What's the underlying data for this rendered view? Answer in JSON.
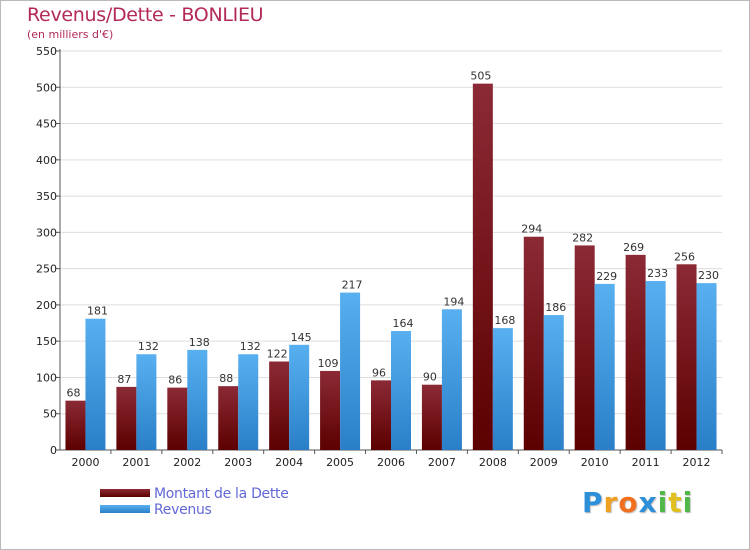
{
  "colors": {
    "title": "#b3295a",
    "dette_top": "#8b2a35",
    "dette_bottom": "#5c0000",
    "revenus_top": "#58b0f0",
    "revenus_bottom": "#2a7fc7",
    "grid": "#dddddd"
  },
  "chart_data": {
    "type": "bar",
    "title": "Revenus/Dette - BONLIEU",
    "subtitle": "(en milliers d'€)",
    "categories": [
      "2000",
      "2001",
      "2002",
      "2003",
      "2004",
      "2005",
      "2006",
      "2007",
      "2008",
      "2009",
      "2010",
      "2011",
      "2012"
    ],
    "series": [
      {
        "name": "Montant de la Dette",
        "values": [
          68,
          87,
          86,
          88,
          122,
          109,
          96,
          90,
          505,
          294,
          282,
          269,
          256
        ]
      },
      {
        "name": "Revenus",
        "values": [
          181,
          132,
          138,
          132,
          145,
          217,
          164,
          194,
          168,
          186,
          229,
          233,
          230
        ]
      }
    ],
    "ylim": [
      0,
      550
    ],
    "yticks": [
      0,
      50,
      100,
      150,
      200,
      250,
      300,
      350,
      400,
      450,
      500,
      550
    ],
    "legend": "bottom-left",
    "grid": true
  },
  "logo": {
    "letters": [
      "P",
      "r",
      "o",
      "x",
      "i",
      "t",
      "i"
    ],
    "colors": [
      "#2e8fd9",
      "#f0a020",
      "#f07020",
      "#2e8fd9",
      "#4fb848",
      "#e0c020",
      "#4fb848"
    ]
  }
}
